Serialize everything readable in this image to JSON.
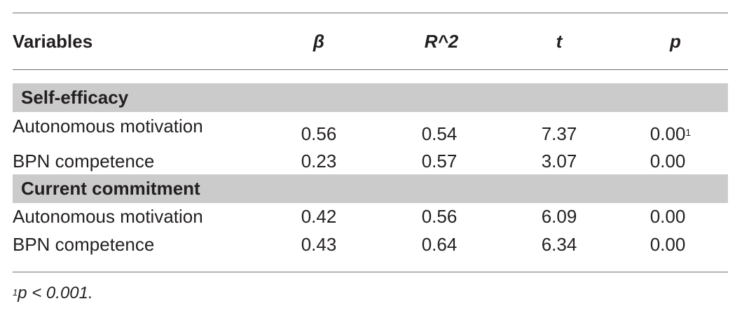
{
  "table": {
    "headers": {
      "variables": "Variables",
      "beta": "β",
      "r2": "R^2",
      "t": "t",
      "p": "p"
    },
    "groups": [
      {
        "label": "Self-efficacy",
        "rows": [
          {
            "variable": "Autonomous motivation",
            "beta": "0.56",
            "r2": "0.54",
            "t": "7.37",
            "p": "0.00",
            "p_note": "1"
          },
          {
            "variable": "BPN competence",
            "beta": "0.23",
            "r2": "0.57",
            "t": "3.07",
            "p": "0.00"
          }
        ]
      },
      {
        "label": "Current commitment",
        "rows": [
          {
            "variable": "Autonomous motivation",
            "beta": "0.42",
            "r2": "0.56",
            "t": "6.09",
            "p": "0.00"
          },
          {
            "variable": "BPN competence",
            "beta": "0.43",
            "r2": "0.64",
            "t": "6.34",
            "p": "0.00"
          }
        ]
      }
    ]
  },
  "footnote": {
    "marker": "1",
    "text": "p < 0.001."
  }
}
